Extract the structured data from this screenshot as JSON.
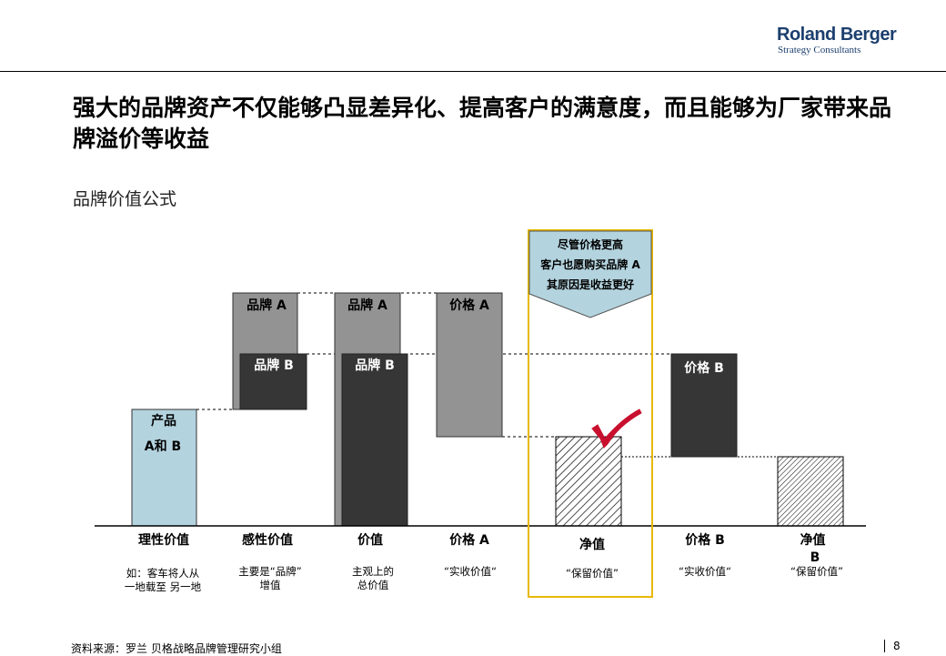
{
  "logo": {
    "name": "Roland Berger",
    "tagline": "Strategy Consultants"
  },
  "title": "强大的品牌资产不仅能够凸显差异化、提高客户的满意度，而且能够为厂家带来品牌溢价等收益",
  "subtitle": "品牌价值公式",
  "chart": {
    "callout_lines": [
      "尽管价格更高",
      "客户也愿购买品牌 A",
      "其原因是收益更好"
    ],
    "bar_labels": {
      "product_l1": "产品",
      "product_l2": "A和 B",
      "brand_a_1": "品牌 A",
      "brand_b_1": "品牌 B",
      "brand_a_2": "品牌 A",
      "brand_b_2": "品牌 B",
      "price_a": "价格 A",
      "price_b": "价格 B"
    },
    "categories": [
      {
        "name": "理性价值",
        "desc": [
          "如：客车将人从",
          "一地载至 另一地"
        ]
      },
      {
        "name": "感性价值",
        "desc": [
          "主要是“品牌”",
          "增值"
        ]
      },
      {
        "name": "价值",
        "desc": [
          "主观上的",
          "总价值"
        ]
      },
      {
        "name": "价格 A",
        "desc": [
          "“实收价值“"
        ]
      },
      {
        "name": "净值",
        "desc": [
          "“保留价值”"
        ]
      },
      {
        "name": "价格 B",
        "desc": [
          "“实收价值“"
        ]
      },
      {
        "name": "净值\nB",
        "desc": [
          "“保留价值”"
        ]
      }
    ],
    "colors": {
      "light_blue": "#b3d3de",
      "gray": "#939393",
      "dark": "#363636",
      "callout_border": "#e8b800"
    }
  },
  "footer": {
    "source": "资料来源：罗兰 贝格战略品牌管理研究小组",
    "page": "8"
  }
}
